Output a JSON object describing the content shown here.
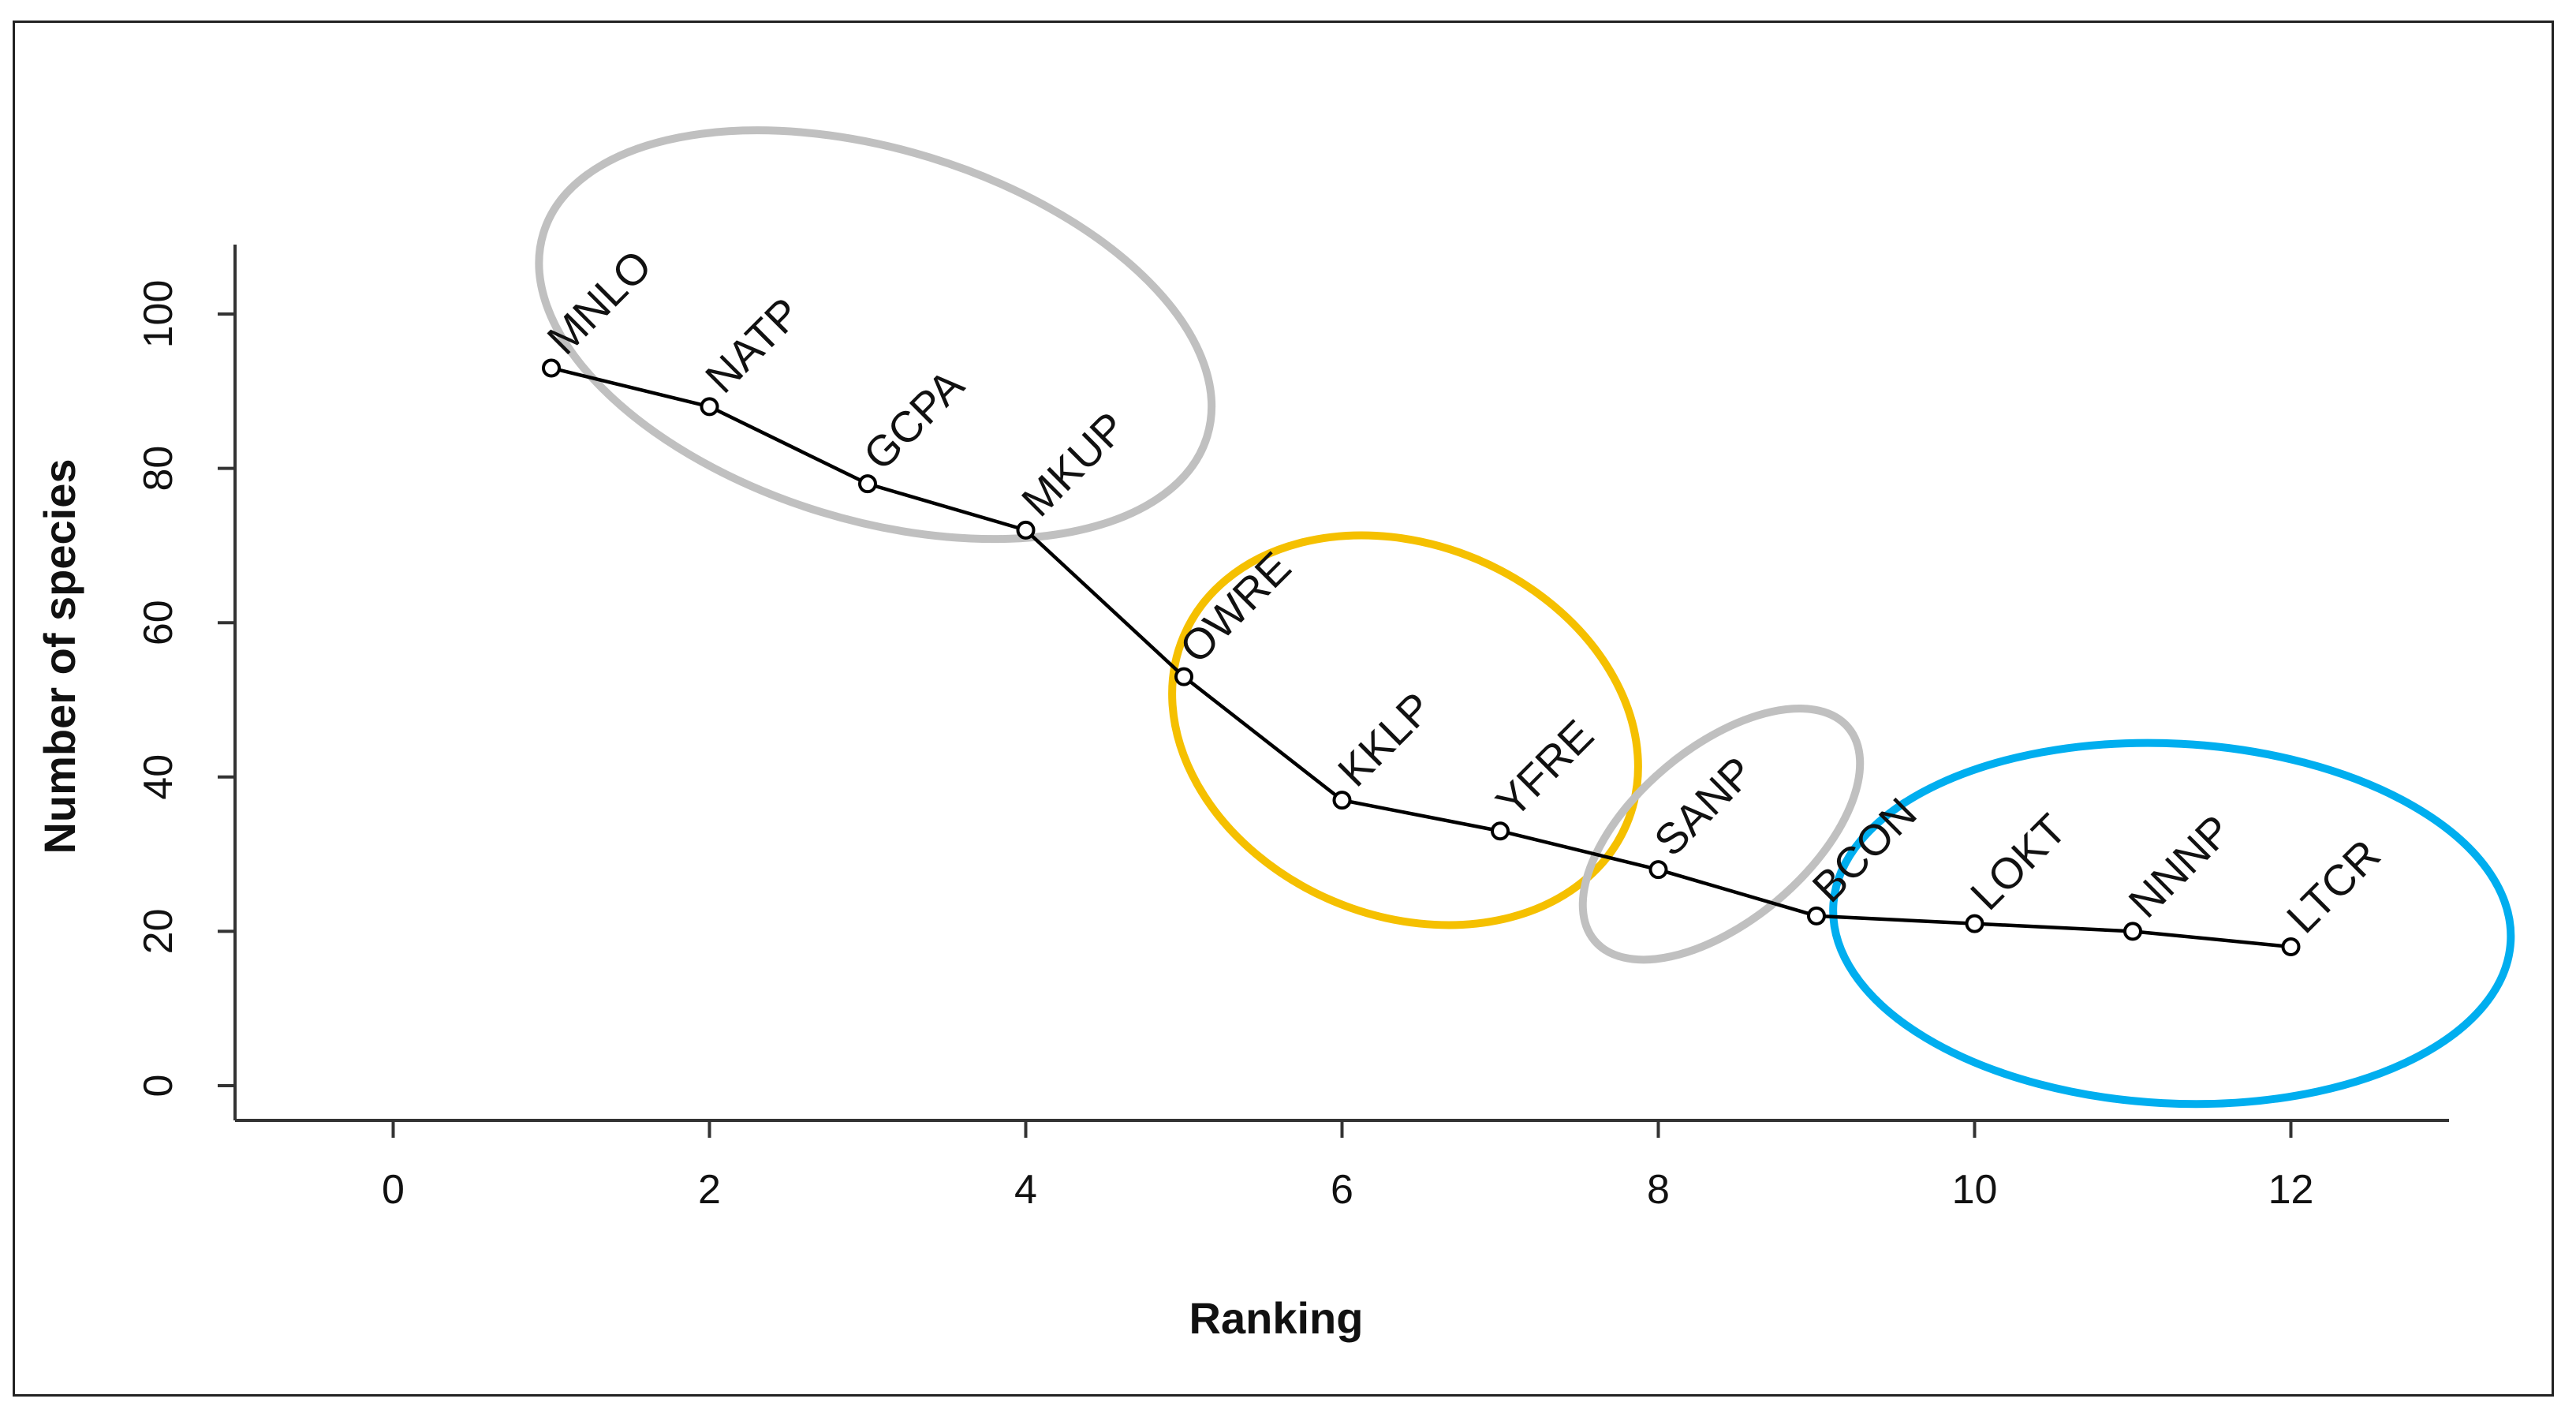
{
  "chart_data": {
    "type": "line",
    "title": "",
    "xlabel": "Ranking",
    "ylabel": "Number of species",
    "xlim": [
      -1,
      13
    ],
    "ylim": [
      -4.5,
      109
    ],
    "x_ticks": [
      "0",
      "2",
      "4",
      "6",
      "8",
      "10",
      "12"
    ],
    "y_ticks": [
      "0",
      "20",
      "40",
      "60",
      "80",
      "100"
    ],
    "grid": false,
    "series": [
      {
        "color": "#000000",
        "marker": "open-circle",
        "points": [
          {
            "x": 1,
            "y": 93,
            "label": "MNLO"
          },
          {
            "x": 2,
            "y": 88,
            "label": "NATP"
          },
          {
            "x": 3,
            "y": 78,
            "label": "GCPA"
          },
          {
            "x": 4,
            "y": 72,
            "label": "MKUP"
          },
          {
            "x": 5,
            "y": 53,
            "label": "OWRE"
          },
          {
            "x": 6,
            "y": 37,
            "label": "KKLP"
          },
          {
            "x": 7,
            "y": 33,
            "label": "YFRE"
          },
          {
            "x": 8,
            "y": 28,
            "label": "SANP"
          },
          {
            "x": 9,
            "y": 22,
            "label": "BCON"
          },
          {
            "x": 10,
            "y": 21,
            "label": "LOKT"
          },
          {
            "x": 11,
            "y": 20,
            "label": "NNNP"
          },
          {
            "x": 12,
            "y": 18,
            "label": "LTCR"
          }
        ]
      }
    ],
    "group_ellipses": [
      {
        "members": [
          "MNLO",
          "NATP",
          "GCPA",
          "MKUP"
        ],
        "color": "#c0c0c0"
      },
      {
        "members": [
          "OWRE",
          "KKLP",
          "YFRE"
        ],
        "color": "#f5c000"
      },
      {
        "members": [
          "SANP"
        ],
        "color": "#c0c0c0"
      },
      {
        "members": [
          "BCON",
          "LOKT",
          "NNNP",
          "LTCR"
        ],
        "color": "#00aeef"
      }
    ]
  }
}
